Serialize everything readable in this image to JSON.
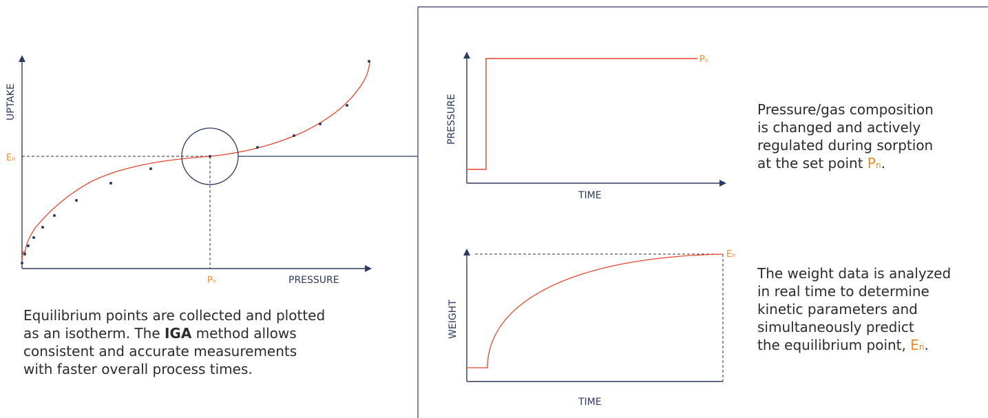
{
  "colors": {
    "axis": "#2d3a63",
    "curve": "#e8452c",
    "accent": "#f08a24",
    "point": "#2d3a63"
  },
  "isotherm": {
    "y_axis_label": "UPTAKE",
    "x_axis_label": "PRESSURE",
    "equilibrium_uptake_label": "E",
    "equilibrium_uptake_sub": "n",
    "set_pressure_label": "P",
    "set_pressure_sub": "n",
    "description": {
      "line1": "Equilibrium points are collected and plotted",
      "line2_pre": "as an isotherm. The ",
      "line2_bold": "IGA",
      "line2_post": " method allows",
      "line3": "consistent and accurate measurements",
      "line4": "with faster overall process times."
    }
  },
  "pressure_panel": {
    "y_axis_label": "PRESSURE",
    "x_axis_label": "TIME",
    "setpoint_label": "P",
    "setpoint_sub": "n",
    "description": {
      "line1": "Pressure/gas composition",
      "line2": "is changed and actively",
      "line3": "regulated during sorption",
      "line4_pre": "at the set point ",
      "line4_sym": "P",
      "line4_sub": "n",
      "line4_post": "."
    }
  },
  "weight_panel": {
    "y_axis_label": "WEIGHT",
    "x_axis_label": "TIME",
    "equilibrium_label": "E",
    "equilibrium_sub": "n",
    "description": {
      "line1": "The weight data is analyzed",
      "line2": "in real time to determine",
      "line3": "kinetic parameters and",
      "line4": "simultaneously predict",
      "line5_pre": "the equilibrium point, ",
      "line5_sym": "E",
      "line5_sub": "n",
      "line5_post": "."
    }
  }
}
